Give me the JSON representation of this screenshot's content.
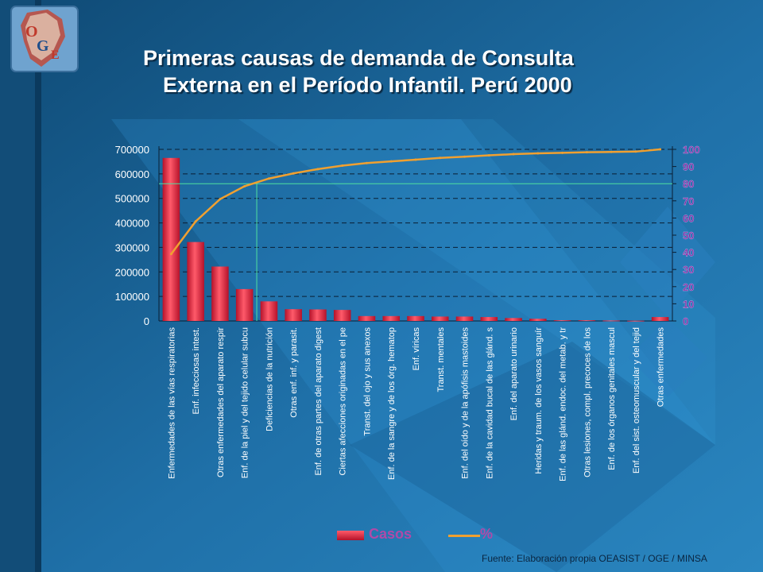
{
  "title": {
    "line1": "Primeras causas de demanda de Consulta",
    "line2": "Externa en el Período Infantil. Perú 2000"
  },
  "logo": {
    "letters": [
      "O",
      "G",
      "E"
    ]
  },
  "legend": {
    "bars_label": "Casos",
    "line_label": "%"
  },
  "source": "Fuente: Elaboración propia OEASIST / OGE / MINSA",
  "colors": {
    "bar_top": "#ff5a6a",
    "bar_bottom": "#b5122a",
    "line": "#f0a030",
    "y2_labels": "#7a2fa0",
    "reference_line": "#4fe0a0"
  },
  "chart_data": {
    "type": "bar",
    "categories": [
      "Enfermedades de las vías respiratorias",
      "Enf. infecciosas intest.",
      "Otras enfermedades del aparato respir",
      "Enf. de la piel y del tejido celular subcu",
      "Deficiencias de la nutrición",
      "Otras enf. inf. y parasit.",
      "Enf. de otras partes del aparato digest",
      "Ciertas afecciones originadas en el pe",
      "Transt. del ojo y sus anexos",
      "Enf. de la sangre y de los órg. hematop",
      "Enf. víricas",
      "Transt. mentales",
      "Enf. del oído y de la apófisis mastoides",
      "Enf. de la cavidad bucal de las glánd. s",
      "Enf. del aparato urinario",
      "Heridas y traum. de los vasos sanguír",
      "Enf. de las glánd. endoc. del metab. y tr",
      "Otras lesiones, compl. precoces de los",
      "Enf. de los órganos genitales mascul",
      "Enf. del sist. osteomuscular y del tejid",
      "Otras enfermedades"
    ],
    "series": [
      {
        "name": "Casos",
        "axis": "left",
        "values": [
          665000,
          322000,
          222000,
          130000,
          80000,
          48000,
          47000,
          45000,
          20000,
          20000,
          20000,
          18000,
          18000,
          16000,
          12000,
          9000,
          3000,
          3000,
          2000,
          1000,
          16000
        ]
      },
      {
        "name": "%",
        "axis": "right",
        "values": [
          39,
          58,
          71,
          78.5,
          83,
          86,
          88.5,
          90.5,
          92,
          93,
          94,
          95,
          95.7,
          96.5,
          97.2,
          97.7,
          98,
          98.3,
          98.5,
          98.7,
          100
        ]
      }
    ],
    "y_ticks": [
      "0",
      "100000",
      "200000",
      "300000",
      "400000",
      "500000",
      "600000",
      "700000"
    ],
    "y2_ticks": [
      "0",
      "10",
      "20",
      "30",
      "40",
      "50",
      "60",
      "70",
      "80",
      "90",
      "100"
    ],
    "ylim": [
      0,
      700000
    ],
    "y2lim": [
      0,
      100
    ],
    "reference_y2": 80,
    "grid": "dashed horizontal",
    "legend_position": "bottom"
  }
}
